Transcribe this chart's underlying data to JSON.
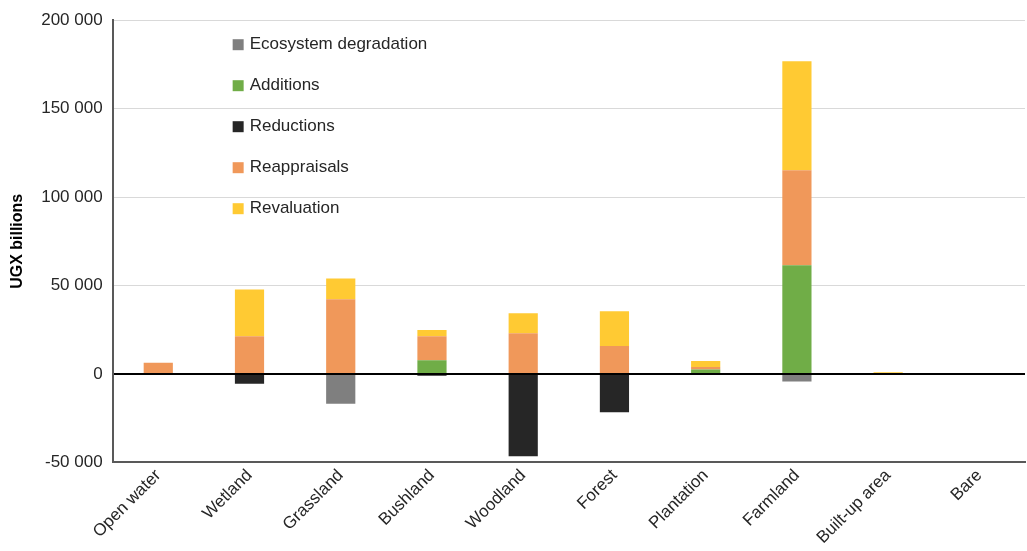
{
  "chart_data": {
    "type": "bar",
    "ylabel": "UGX billions",
    "stacked": true,
    "grid": "y",
    "legend": "top left",
    "categories": [
      "Open water",
      "Wetland",
      "Grassland",
      "Bushland",
      "Woodland",
      "Forest",
      "Plantation",
      "Farmland",
      "Built-up area",
      "Bare"
    ],
    "ylim": [
      -50000,
      200000
    ],
    "yticks": [
      {
        "value": -50000,
        "label": "-50 000"
      },
      {
        "value": 0,
        "label": "0"
      },
      {
        "value": 50000,
        "label": "50 000"
      },
      {
        "value": 100000,
        "label": "100 000"
      },
      {
        "value": 150000,
        "label": "150 000"
      },
      {
        "value": 200000,
        "label": "200 000"
      }
    ],
    "series": [
      {
        "name": "Ecosystem degradation",
        "color": "#7f7f7f",
        "values": [
          0,
          0,
          -16800,
          0,
          0,
          0,
          0,
          -4200,
          0,
          0
        ]
      },
      {
        "name": "Additions",
        "color": "#70ad47",
        "values": [
          0,
          0,
          0,
          7800,
          0,
          0,
          2600,
          61400,
          0,
          0
        ]
      },
      {
        "name": "Reductions",
        "color": "#262626",
        "values": [
          0,
          -5500,
          0,
          -1000,
          -46500,
          -21600,
          0,
          0,
          0,
          0
        ]
      },
      {
        "name": "Reappraisals",
        "color": "#f0985a",
        "values": [
          6400,
          21300,
          42300,
          13500,
          23000,
          15800,
          1400,
          53800,
          0,
          0
        ]
      },
      {
        "name": "Revaluation",
        "color": "#ffca33",
        "values": [
          0,
          26500,
          11700,
          3600,
          11300,
          19700,
          3300,
          61600,
          1000,
          0
        ]
      }
    ]
  }
}
